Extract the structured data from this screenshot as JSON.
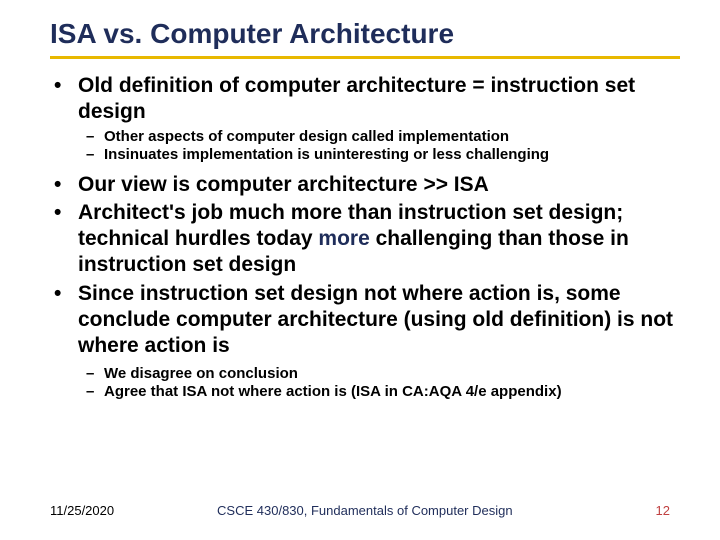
{
  "title": "ISA vs. Computer Architecture",
  "colors": {
    "title": "#1f2d5a",
    "underline": "#e8b800",
    "body": "#000000",
    "emphasis": "#1f2d5a",
    "page_number": "#c04040",
    "background": "#ffffff"
  },
  "bullets": [
    {
      "level": 1,
      "text": "Old definition of computer architecture = instruction set design"
    },
    {
      "level": 2,
      "text": "Other aspects of computer design called implementation"
    },
    {
      "level": 2,
      "text": "Insinuates implementation is uninteresting or less challenging"
    },
    {
      "level": 1,
      "text": "Our view is computer architecture >> ISA"
    },
    {
      "level": 1,
      "text_pre": "Architect's job much more than instruction set design; technical hurdles today ",
      "text_emph": "more",
      "text_post": " challenging than those in instruction set design"
    },
    {
      "level": 1,
      "text": "Since instruction set design not where action is, some conclude computer architecture (using old definition) is not where action is"
    },
    {
      "level": 2,
      "text": "We disagree on conclusion"
    },
    {
      "level": 2,
      "text": "Agree that ISA not where action is (ISA in CA:AQA 4/e appendix)"
    }
  ],
  "footer": {
    "date": "11/25/2020",
    "course": "CSCE 430/830, Fundamentals of Computer Design",
    "page": "12"
  },
  "typography": {
    "title_fontsize": 28,
    "bullet1_fontsize": 21,
    "bullet2_fontsize": 15,
    "footer_fontsize": 13,
    "font_family": "Arial",
    "weight": "bold"
  }
}
